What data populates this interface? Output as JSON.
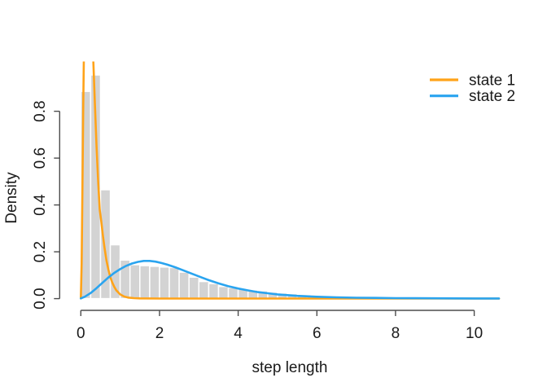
{
  "figure": {
    "background": "#ffffff",
    "axis_color": "#4d4d4d",
    "text_color": "#1a1a1a",
    "bar_fill": "#d3d3d3",
    "bar_border": "#ffffff"
  },
  "chart_data": {
    "type": "bar",
    "subtype": "histogram-with-density-curves",
    "title": "",
    "xlabel": "step length",
    "ylabel": "Density",
    "xlim": [
      0,
      10.63
    ],
    "ylim": [
      0,
      1.015
    ],
    "grid": "off",
    "x_ticks": {
      "values": [
        0,
        2,
        4,
        6,
        8,
        10
      ],
      "labels": [
        "0",
        "2",
        "4",
        "6",
        "8",
        "10"
      ]
    },
    "y_ticks": {
      "values": [
        0,
        0.2,
        0.4,
        0.6,
        0.8
      ],
      "labels": [
        "0.0",
        "0.2",
        "0.4",
        "0.6",
        "0.8"
      ]
    },
    "histogram": {
      "bin_start": 0,
      "bin_width": 0.25,
      "densities": [
        0.885,
        0.955,
        0.465,
        0.23,
        0.165,
        0.145,
        0.141,
        0.138,
        0.135,
        0.133,
        0.113,
        0.092,
        0.073,
        0.064,
        0.052,
        0.047,
        0.042,
        0.037,
        0.033,
        0.028,
        0.024,
        0.021,
        0.017,
        0.015,
        0.013,
        0.011,
        0.009,
        0.008,
        0.007,
        0.006,
        0.005,
        0.004,
        0.004,
        0.003,
        0.003,
        0.002,
        0.002,
        0.002,
        0.001,
        0.001,
        0.001,
        0.001
      ]
    },
    "series": [
      {
        "name": "state 1",
        "color": "#FFA319",
        "x": [
          0,
          0.02,
          0.04,
          0.06,
          0.08,
          0.1,
          0.13,
          0.16,
          0.2,
          0.24,
          0.28,
          0.32,
          0.36,
          0.4,
          0.44,
          0.48,
          0.52,
          0.56,
          0.6,
          0.65,
          0.7,
          0.75,
          0.8,
          0.85,
          0.9,
          1.0,
          1.1,
          1.2,
          1.35,
          1.5,
          2.0,
          3.0,
          4.0,
          5.0,
          6.0,
          7.0,
          8.0,
          9.0,
          10.0,
          10.63
        ],
        "y": [
          0.001,
          0.15,
          0.45,
          0.8,
          1.08,
          1.26,
          1.4,
          1.44,
          1.42,
          1.33,
          1.18,
          1.0,
          0.82,
          0.65,
          0.5,
          0.38,
          0.33,
          0.27,
          0.22,
          0.165,
          0.125,
          0.092,
          0.068,
          0.05,
          0.036,
          0.018,
          0.009,
          0.0045,
          0.002,
          0.001,
          0.0004,
          0.0002,
          0.0002,
          0.0002,
          0.0002,
          0.0002,
          0.0002,
          0.0002,
          0.0002,
          0.0002
        ]
      },
      {
        "name": "state 2",
        "color": "#2AA4EF",
        "x": [
          0,
          0.1,
          0.25,
          0.4,
          0.55,
          0.7,
          0.85,
          1.0,
          1.15,
          1.3,
          1.45,
          1.6,
          1.75,
          1.9,
          2.05,
          2.2,
          2.4,
          2.6,
          2.8,
          3.0,
          3.25,
          3.5,
          3.75,
          4.0,
          4.25,
          4.5,
          4.75,
          5.0,
          5.5,
          6.0,
          6.5,
          7.0,
          7.5,
          8.0,
          8.5,
          9.0,
          9.5,
          10.0,
          10.63
        ],
        "y": [
          0.001,
          0.008,
          0.024,
          0.045,
          0.068,
          0.09,
          0.11,
          0.126,
          0.14,
          0.15,
          0.157,
          0.161,
          0.161,
          0.158,
          0.152,
          0.145,
          0.134,
          0.121,
          0.108,
          0.095,
          0.079,
          0.065,
          0.053,
          0.043,
          0.035,
          0.028,
          0.023,
          0.018,
          0.012,
          0.008,
          0.0055,
          0.004,
          0.003,
          0.0022,
          0.0017,
          0.0013,
          0.001,
          0.0008,
          0.0006
        ]
      }
    ],
    "legend": {
      "position": "top-right",
      "entries": [
        "state 1",
        "state 2"
      ]
    }
  }
}
